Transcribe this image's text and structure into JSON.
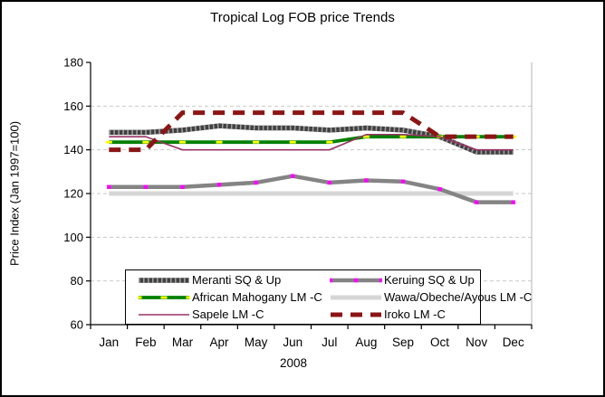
{
  "figure": {
    "background": "#ffffff",
    "border_color": "#000000",
    "axis_color": "#000000",
    "plot_right_border_color": "#b3b3b3",
    "gridline_color": "#c9c9c9"
  },
  "chart_data": {
    "type": "line",
    "title": "Tropical Log FOB price Trends",
    "ylabel": "Price Index (Jan 1997=100)",
    "xlabel": "2008",
    "categories": [
      "Jan",
      "Feb",
      "Mar",
      "Apr",
      "May",
      "Jun",
      "Jul",
      "Aug",
      "Sep",
      "Oct",
      "Nov",
      "Dec"
    ],
    "ylim": [
      60,
      180
    ],
    "yticks": [
      60,
      80,
      100,
      120,
      140,
      160,
      180
    ],
    "grid": "horizontal-dashed",
    "legend_position": "inside-bottom-two-columns",
    "series": [
      {
        "name": "Meranti SQ & Up",
        "values": [
          148,
          148,
          149,
          151,
          150,
          150,
          149,
          150,
          149,
          146,
          139,
          139
        ],
        "color": "#404040",
        "style": "thick-hatched",
        "hatch_color": "#9e9e9e"
      },
      {
        "name": "Keruing SQ & Up",
        "values": [
          123,
          123,
          123,
          124,
          125,
          128,
          125,
          126,
          125.5,
          122,
          116,
          116
        ],
        "color": "#848484",
        "style": "thick-marker",
        "marker_color": "#ff00ff"
      },
      {
        "name": "African Mahogany LM -C",
        "values": [
          143.5,
          143.5,
          143.5,
          143.5,
          143.5,
          143.5,
          143.5,
          146,
          146,
          146,
          146,
          146
        ],
        "color": "#008000",
        "style": "thick-dash-marker",
        "marker_color": "#ffff00"
      },
      {
        "name": "Wawa/Obeche/Ayous LM -C",
        "values": [
          120,
          120,
          120,
          120,
          120,
          120,
          120,
          120,
          120,
          120,
          120,
          120
        ],
        "color": "#d6d6d6",
        "style": "thick"
      },
      {
        "name": "Sapele LM -C",
        "values": [
          146,
          146,
          140,
          140,
          140,
          140,
          140,
          147,
          147,
          146,
          140,
          140
        ],
        "color": "#993366",
        "style": "thin"
      },
      {
        "name": "Iroko LM -C",
        "values": [
          140,
          140,
          157,
          157,
          157,
          157,
          157,
          157,
          157,
          146,
          146,
          146
        ],
        "color": "#8b1515",
        "style": "dashed-thick"
      }
    ]
  }
}
